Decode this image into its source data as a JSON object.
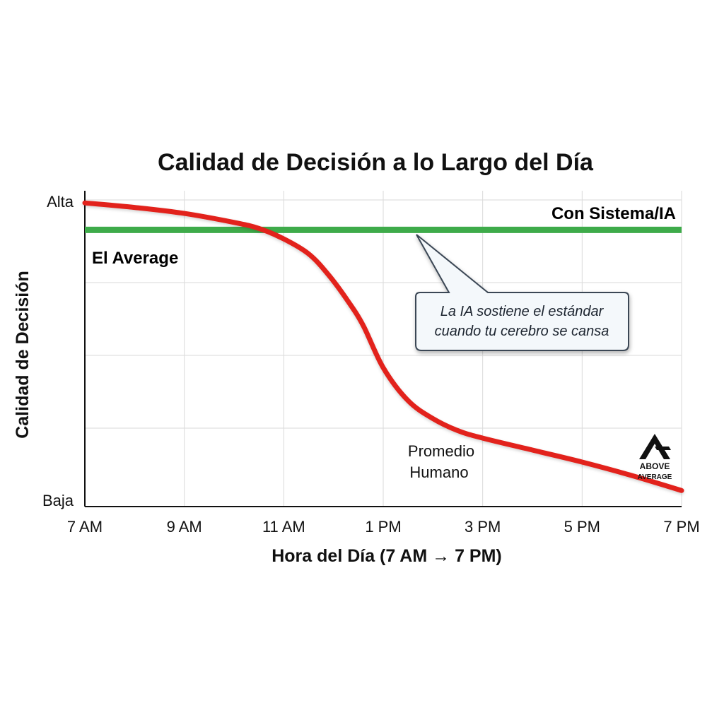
{
  "chart_data": {
    "type": "line",
    "title": "Calidad de Decisión a lo Largo del Día",
    "xlabel": "Hora del Día (7 AM → 7 PM)",
    "ylabel": "Calidad de Decisión",
    "x_ticks": [
      "7 AM",
      "9 AM",
      "11 AM",
      "1 PM",
      "3 PM",
      "5 PM",
      "7 PM"
    ],
    "y_ticks": [
      "Baja",
      "Alta"
    ],
    "xlim": [
      7,
      19
    ],
    "ylim": [
      0,
      100
    ],
    "grid": true,
    "series": [
      {
        "name": "El Average",
        "color": "#e2231a",
        "x": [
          7,
          8,
          9,
          10,
          10.5,
          11,
          11.5,
          11.9,
          12.3,
          12.6,
          13,
          13.5,
          14,
          14.5,
          15,
          16,
          17,
          18,
          19
        ],
        "y": [
          99,
          97.5,
          95.5,
          92.5,
          90.5,
          87,
          82,
          75,
          66,
          58,
          44,
          33,
          27,
          23,
          20.5,
          16.5,
          12.5,
          8,
          3
        ]
      },
      {
        "name": "Con Sistema/IA",
        "color": "#3eab4a",
        "x": [
          7,
          19
        ],
        "y": [
          90,
          90
        ]
      }
    ],
    "annotations": {
      "callout_line1": "La IA sostiene el estándar",
      "callout_line2": "cuando tu cerebro se cansa",
      "human_line1": "Promedio",
      "human_line2": "Humano"
    }
  },
  "logo": {
    "line1": "ABOVE",
    "line2": "AVERAGE"
  }
}
